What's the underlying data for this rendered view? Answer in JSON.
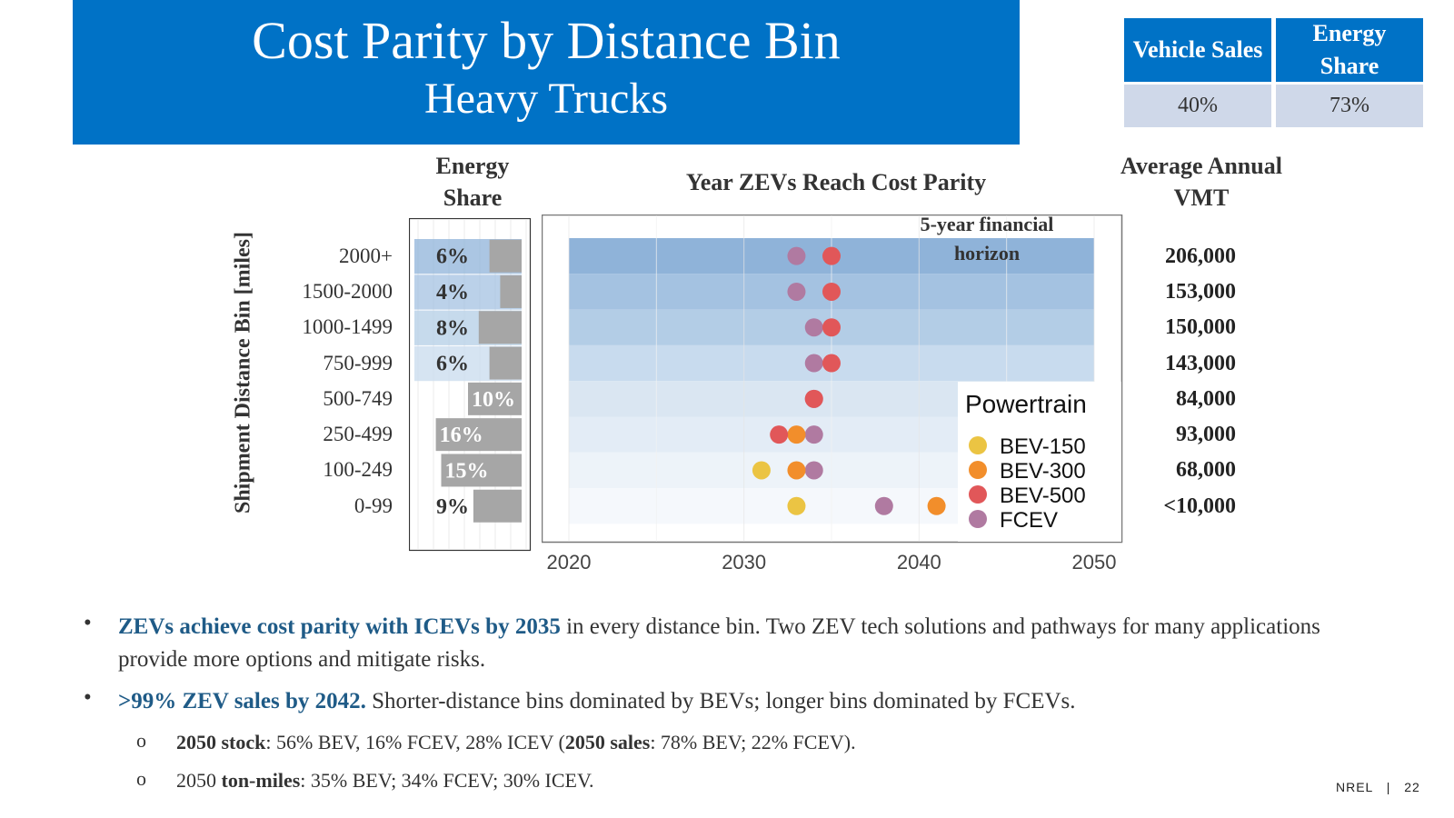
{
  "title": {
    "main": "Cost Parity by Distance Bin",
    "sub": "Heavy Trucks"
  },
  "kpis": [
    {
      "label": "Vehicle Sales",
      "value": "40%"
    },
    {
      "label": "Energy Share",
      "value": "73%"
    }
  ],
  "headers": {
    "energy_share": "Energy Share",
    "chart_title": "Year ZEVs Reach Cost Parity",
    "vmt": "Average Annual VMT",
    "y_axis": "Shipment Distance Bin [miles]"
  },
  "bins": [
    "2000+",
    "1500-2000",
    "1000-1499",
    "750-999",
    "500-749",
    "250-499",
    "100-249",
    "0-99"
  ],
  "vmt": [
    "206,000",
    "153,000",
    "150,000",
    "143,000",
    "84,000",
    "93,000",
    "68,000",
    "<10,000"
  ],
  "chart_data": [
    {
      "type": "bar",
      "title": "Energy Share",
      "categories": [
        "2000+",
        "1500-2000",
        "1000-1499",
        "750-999",
        "500-749",
        "250-499",
        "100-249",
        "0-99"
      ],
      "values": [
        6,
        4,
        8,
        6,
        10,
        16,
        15,
        9
      ],
      "labels": [
        "6%",
        "4%",
        "8%",
        "6%",
        "10%",
        "16%",
        "15%",
        "9%"
      ],
      "unit": "%",
      "xlim": [
        0,
        20
      ]
    },
    {
      "type": "scatter",
      "title": "Year ZEVs Reach Cost Parity",
      "categories": [
        "2000+",
        "1500-2000",
        "1000-1499",
        "750-999",
        "500-749",
        "250-499",
        "100-249",
        "0-99"
      ],
      "xlim": [
        2018.5,
        2051.5
      ],
      "x_ticks": [
        2020,
        2030,
        2040,
        2050
      ],
      "annotation": "5-year financial horizon",
      "legend_title": "Powertrain",
      "legend_position": "bottom-right",
      "series": [
        {
          "name": "BEV-150",
          "color": "#EBC443",
          "points": [
            {
              "bin": "100-249",
              "year": 2031
            },
            {
              "bin": "0-99",
              "year": 2033
            }
          ]
        },
        {
          "name": "BEV-300",
          "color": "#F28E2B",
          "points": [
            {
              "bin": "250-499",
              "year": 2033
            },
            {
              "bin": "100-249",
              "year": 2033
            },
            {
              "bin": "0-99",
              "year": 2041
            }
          ]
        },
        {
          "name": "BEV-500",
          "color": "#E15759",
          "points": [
            {
              "bin": "2000+",
              "year": 2035
            },
            {
              "bin": "1500-2000",
              "year": 2035
            },
            {
              "bin": "1000-1499",
              "year": 2035
            },
            {
              "bin": "750-999",
              "year": 2035
            },
            {
              "bin": "500-749",
              "year": 2034
            },
            {
              "bin": "250-499",
              "year": 2032
            }
          ]
        },
        {
          "name": "FCEV",
          "color": "#B07AA1",
          "points": [
            {
              "bin": "2000+",
              "year": 2033
            },
            {
              "bin": "1500-2000",
              "year": 2033
            },
            {
              "bin": "1000-1499",
              "year": 2034
            },
            {
              "bin": "750-999",
              "year": 2034
            },
            {
              "bin": "500-749",
              "year": 2034
            },
            {
              "bin": "250-499",
              "year": 2034
            },
            {
              "bin": "100-249",
              "year": 2034
            },
            {
              "bin": "0-99",
              "year": 2038
            }
          ]
        }
      ]
    }
  ],
  "bullets": [
    {
      "bold": "ZEVs achieve cost parity with ICEVs by 2035",
      "text": " in every distance bin. Two ZEV tech solutions and pathways for many applications provide more options and mitigate risks."
    },
    {
      "bold": ">99% ZEV sales by 2042.",
      "text": " Shorter-distance bins dominated by BEVs; longer bins dominated by FCEVs."
    }
  ],
  "sub_bullets": [
    {
      "b1": "2050 stock",
      "t1": ": 56% BEV, 16% FCEV, 28% ICEV (",
      "b2": "2050 sales",
      "t2": ": 78% BEV; 22% FCEV)."
    },
    {
      "t0": "2050 ",
      "b1": "ton-miles",
      "t1": ": 35% BEV; 34% FCEV; 30% ICEV."
    }
  ],
  "footer": {
    "org": "NREL",
    "sep": "|",
    "page": "22"
  },
  "colors": {
    "brand_blue": "#0072C6",
    "kpi_value_bg": "#CFD8E9",
    "bar_gray": "#A6A6A6",
    "accent_text": "#1F5B87"
  }
}
